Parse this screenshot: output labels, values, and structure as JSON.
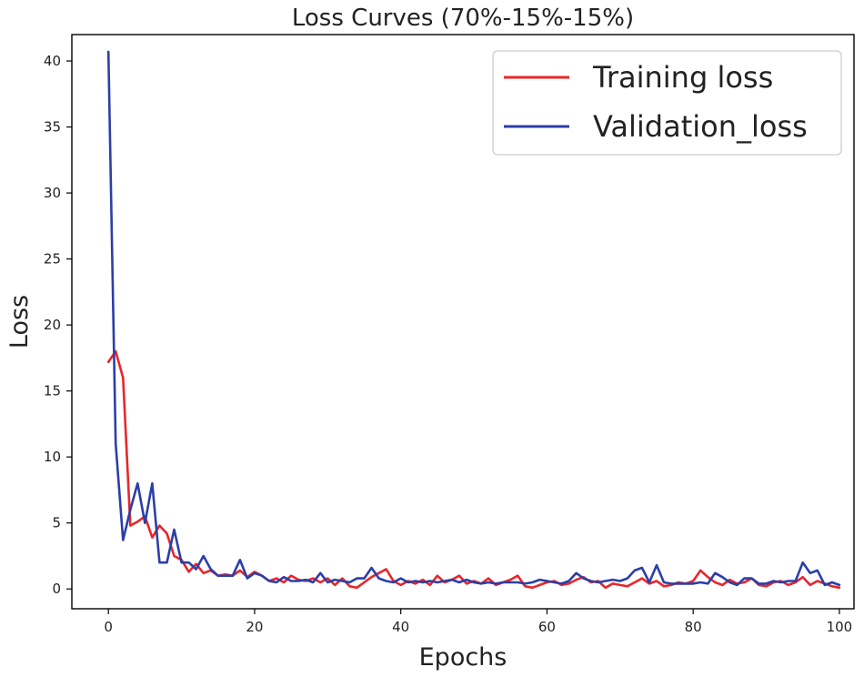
{
  "chart_data": {
    "type": "line",
    "title": "Loss Curves (70%-15%-15%)",
    "xlabel": "Epochs",
    "ylabel": "Loss",
    "xlim": [
      -5,
      102
    ],
    "ylim": [
      -1.5,
      42
    ],
    "x_ticks": [
      0,
      20,
      40,
      60,
      80,
      100
    ],
    "y_ticks": [
      0,
      5,
      10,
      15,
      20,
      25,
      30,
      35,
      40
    ],
    "grid": false,
    "legend_position": "top-right",
    "x": [
      0,
      1,
      2,
      3,
      4,
      5,
      6,
      7,
      8,
      9,
      10,
      11,
      12,
      13,
      14,
      15,
      16,
      17,
      18,
      19,
      20,
      21,
      22,
      23,
      24,
      25,
      26,
      27,
      28,
      29,
      30,
      31,
      32,
      33,
      34,
      35,
      36,
      37,
      38,
      39,
      40,
      41,
      42,
      43,
      44,
      45,
      46,
      47,
      48,
      49,
      50,
      51,
      52,
      53,
      54,
      55,
      56,
      57,
      58,
      59,
      60,
      61,
      62,
      63,
      64,
      65,
      66,
      67,
      68,
      69,
      70,
      71,
      72,
      73,
      74,
      75,
      76,
      77,
      78,
      79,
      80,
      81,
      82,
      83,
      84,
      85,
      86,
      87,
      88,
      89,
      90,
      91,
      92,
      93,
      94,
      95,
      96,
      97,
      98,
      99,
      100
    ],
    "series": [
      {
        "name": "Training loss",
        "color": "#e8262a",
        "values": [
          17.2,
          18.0,
          16.0,
          4.8,
          5.1,
          5.5,
          3.9,
          4.8,
          4.2,
          2.5,
          2.2,
          1.3,
          1.9,
          1.2,
          1.4,
          1.0,
          1.1,
          1.0,
          1.4,
          0.9,
          1.3,
          1.0,
          0.6,
          0.8,
          0.5,
          1.0,
          0.7,
          0.6,
          0.8,
          0.5,
          0.8,
          0.3,
          0.8,
          0.2,
          0.1,
          0.5,
          0.9,
          1.2,
          1.5,
          0.6,
          0.3,
          0.6,
          0.4,
          0.7,
          0.3,
          1.0,
          0.5,
          0.7,
          1.0,
          0.4,
          0.6,
          0.4,
          0.8,
          0.3,
          0.5,
          0.7,
          1.0,
          0.2,
          0.1,
          0.3,
          0.5,
          0.6,
          0.3,
          0.4,
          0.7,
          0.9,
          0.5,
          0.6,
          0.1,
          0.4,
          0.3,
          0.2,
          0.5,
          0.8,
          0.4,
          0.6,
          0.2,
          0.3,
          0.5,
          0.4,
          0.6,
          1.4,
          0.9,
          0.5,
          0.3,
          0.7,
          0.4,
          0.5,
          0.8,
          0.3,
          0.2,
          0.5,
          0.6,
          0.3,
          0.5,
          0.9,
          0.3,
          0.6,
          0.4,
          0.2,
          0.1
        ]
      },
      {
        "name": "Validation_loss",
        "color": "#2b3fa8",
        "values": [
          40.7,
          11.0,
          3.7,
          6.0,
          8.0,
          5.0,
          8.0,
          2.0,
          2.0,
          4.5,
          2.0,
          2.0,
          1.5,
          2.5,
          1.5,
          1.0,
          1.0,
          1.0,
          2.2,
          0.8,
          1.2,
          1.0,
          0.6,
          0.5,
          0.9,
          0.6,
          0.6,
          0.7,
          0.5,
          1.2,
          0.5,
          0.7,
          0.6,
          0.5,
          0.8,
          0.8,
          1.6,
          0.8,
          0.6,
          0.5,
          0.8,
          0.5,
          0.6,
          0.5,
          0.6,
          0.5,
          0.6,
          0.7,
          0.5,
          0.7,
          0.5,
          0.4,
          0.5,
          0.4,
          0.5,
          0.5,
          0.5,
          0.4,
          0.5,
          0.7,
          0.6,
          0.5,
          0.4,
          0.6,
          1.2,
          0.8,
          0.6,
          0.5,
          0.6,
          0.7,
          0.6,
          0.8,
          1.4,
          1.6,
          0.5,
          1.8,
          0.5,
          0.4,
          0.4,
          0.4,
          0.4,
          0.5,
          0.4,
          1.2,
          0.9,
          0.5,
          0.3,
          0.8,
          0.8,
          0.4,
          0.4,
          0.6,
          0.5,
          0.6,
          0.6,
          2.0,
          1.2,
          1.4,
          0.3,
          0.5,
          0.3
        ]
      }
    ]
  }
}
